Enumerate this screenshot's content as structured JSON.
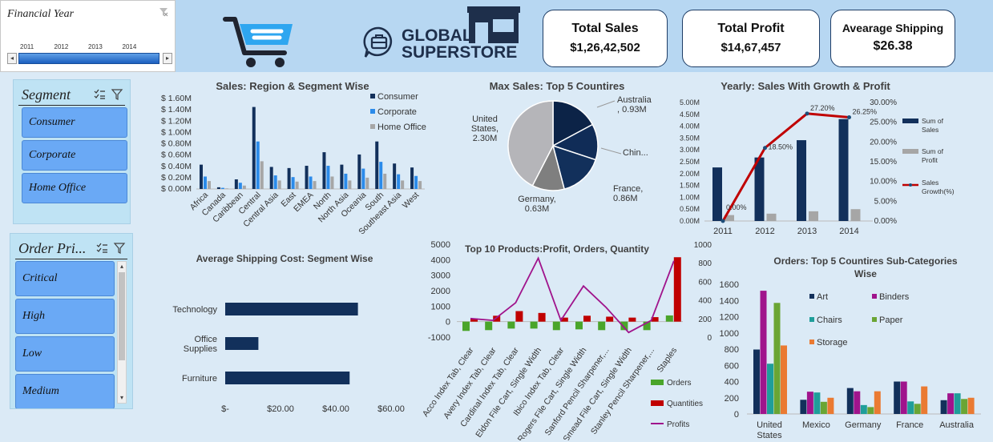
{
  "financial_year": {
    "title": "Financial Year",
    "years": [
      "2011",
      "2012",
      "2013",
      "2014"
    ]
  },
  "banner": {
    "brand_line1": "GLOBAL",
    "brand_line2": "SUPERSTORE"
  },
  "kpis": [
    {
      "title": "Total Sales",
      "value": "$1,26,42,502"
    },
    {
      "title": "Total Profit",
      "value": "$14,67,457"
    },
    {
      "title": "Avearage Shipping",
      "value": "$26.38"
    }
  ],
  "segment_slicer": {
    "title": "Segment",
    "items": [
      "Consumer",
      "Corporate",
      "Home Office"
    ]
  },
  "order_priority_slicer": {
    "title": "Order Pri...",
    "items": [
      "Critical",
      "High",
      "Low",
      "Medium"
    ]
  },
  "colors": {
    "navy": "#12305b",
    "blue": "#2b8bea",
    "grey": "#a6a6a6",
    "red": "#c00000",
    "green": "#4aa52a",
    "magenta": "#a0148c"
  },
  "chart_data": [
    {
      "type": "bar",
      "title": "Sales: Region & Segment Wise",
      "categories": [
        "Africa",
        "Canada",
        "Caribbean",
        "Central",
        "Central Asia",
        "East",
        "EMEA",
        "North",
        "North Asia",
        "Oceania",
        "South",
        "Southeast Asia",
        "West"
      ],
      "series": [
        {
          "name": "Consumer",
          "values": [
            0.43,
            0.03,
            0.17,
            1.45,
            0.39,
            0.37,
            0.41,
            0.65,
            0.43,
            0.61,
            0.84,
            0.45,
            0.38
          ]
        },
        {
          "name": "Corporate",
          "values": [
            0.22,
            0.02,
            0.11,
            0.84,
            0.24,
            0.21,
            0.22,
            0.41,
            0.27,
            0.36,
            0.48,
            0.26,
            0.23
          ]
        },
        {
          "name": "Home Office",
          "values": [
            0.14,
            0.01,
            0.06,
            0.49,
            0.15,
            0.13,
            0.14,
            0.22,
            0.15,
            0.2,
            0.27,
            0.15,
            0.14
          ]
        }
      ],
      "ylim": [
        0,
        1.6
      ],
      "yticks": [
        "$ 0.00M",
        "$ 0.20M",
        "$ 0.40M",
        "$ 0.60M",
        "$ 0.80M",
        "$ 1.00M",
        "$ 1.20M",
        "$ 1.40M",
        "$ 1.60M"
      ],
      "legend": "top-right"
    },
    {
      "type": "pie",
      "title": "Max Sales: Top 5 Countires",
      "slices": [
        {
          "label": "Australia\n, 0.93M",
          "value": 0.93
        },
        {
          "label": "Chin...",
          "value": 0.7
        },
        {
          "label": "France,\n0.86M",
          "value": 0.86
        },
        {
          "label": "Germany,\n0.63M",
          "value": 0.63
        },
        {
          "label": "United\nStates,\n2.30M",
          "value": 2.3
        }
      ]
    },
    {
      "type": "bar",
      "title": "Yearly: Sales With Growth & Profit",
      "categories": [
        "2011",
        "2012",
        "2013",
        "2014"
      ],
      "series": [
        {
          "name": "Sum of Sales",
          "values": [
            2.26,
            2.68,
            3.41,
            4.3
          ]
        },
        {
          "name": "Sum of Profit",
          "values": [
            0.25,
            0.31,
            0.41,
            0.5
          ]
        },
        {
          "name": "Sales Growth(%)",
          "values": [
            0.0,
            18.5,
            27.2,
            26.25
          ]
        }
      ],
      "ylim": [
        0,
        5
      ],
      "y2lim": [
        0,
        30
      ],
      "yticks": [
        "0.00M",
        "0.50M",
        "1.00M",
        "1.50M",
        "2.00M",
        "2.50M",
        "3.00M",
        "3.50M",
        "4.00M",
        "4.50M",
        "5.00M"
      ],
      "y2ticks": [
        "0.00%",
        "5.00%",
        "10.00%",
        "15.00%",
        "20.00%",
        "25.00%",
        "30.00%"
      ],
      "growth_labels": [
        "0.00%",
        "18.50%",
        "27.20%",
        "26.25%"
      ],
      "legend": "right"
    },
    {
      "type": "bar",
      "title": "Average Shipping Cost: Segment Wise",
      "categories": [
        "Technology",
        "Office Supplies",
        "Furniture"
      ],
      "category_lines": [
        [
          "Technology"
        ],
        [
          "Office",
          "Supplies"
        ],
        [
          "Furniture"
        ]
      ],
      "values": [
        48,
        12,
        45
      ],
      "xlim": [
        0,
        60
      ],
      "xticks": [
        "$-",
        "$20.00",
        "$40.00",
        "$60.00"
      ]
    },
    {
      "type": "bar",
      "title": "Top 10 Products:Profit, Orders, Quantity",
      "categories": [
        "Acco Index Tab, Clear",
        "Avery Index Tab, Clear",
        "Cardinal Index Tab, Clear",
        "Eldon File Cart, Single Width",
        "Ibico Index Tab, Clear",
        "Rogers File Cart, Single Width",
        "Sanford Pencil Sharpener,...",
        "Smead File Cart, Single Width",
        "Stanley Pencil Sharpener,...",
        "Staples"
      ],
      "series": [
        {
          "name": "Orders",
          "values": [
            -600,
            -550,
            -450,
            -450,
            -550,
            -500,
            -550,
            -550,
            -550,
            400
          ]
        },
        {
          "name": "Quantities",
          "values": [
            200,
            230,
            280,
            260,
            210,
            230,
            220,
            210,
            215,
            860
          ]
        },
        {
          "name": "Profits",
          "values": [
            200,
            180,
            370,
            850,
            180,
            550,
            320,
            50,
            180,
            820
          ]
        }
      ],
      "ylim": [
        -1000,
        5000
      ],
      "y2lim": [
        0,
        1000
      ],
      "yticks": [
        "-1000",
        "0",
        "1000",
        "2000",
        "3000",
        "4000",
        "5000"
      ],
      "y2ticks": [
        "0",
        "200",
        "400",
        "600",
        "800",
        "1000"
      ],
      "legend": "bottom-right"
    },
    {
      "type": "bar",
      "title": "Orders: Top 5 Countires Sub-Categories Wise",
      "title_lines": [
        "Orders: Top 5 Countires Sub-Categories",
        "Wise"
      ],
      "categories": [
        "United States",
        "Mexico",
        "Germany",
        "France",
        "Australia"
      ],
      "category_lines": [
        [
          "United",
          "States"
        ],
        [
          "Mexico"
        ],
        [
          "Germany"
        ],
        [
          "France"
        ],
        [
          "Australia"
        ]
      ],
      "series": [
        {
          "name": "Art",
          "values": [
            795,
            175,
            320,
            400,
            170
          ]
        },
        {
          "name": "Binders",
          "values": [
            1520,
            275,
            280,
            400,
            255
          ]
        },
        {
          "name": "Chairs",
          "values": [
            620,
            265,
            110,
            155,
            255
          ]
        },
        {
          "name": "Paper",
          "values": [
            1370,
            150,
            85,
            125,
            185
          ]
        },
        {
          "name": "Storage",
          "values": [
            845,
            200,
            280,
            340,
            200
          ]
        }
      ],
      "ylim": [
        0,
        1600
      ],
      "yticks": [
        "0",
        "200",
        "400",
        "600",
        "800",
        "1000",
        "1200",
        "1400",
        "1600"
      ],
      "legend": "top"
    }
  ]
}
